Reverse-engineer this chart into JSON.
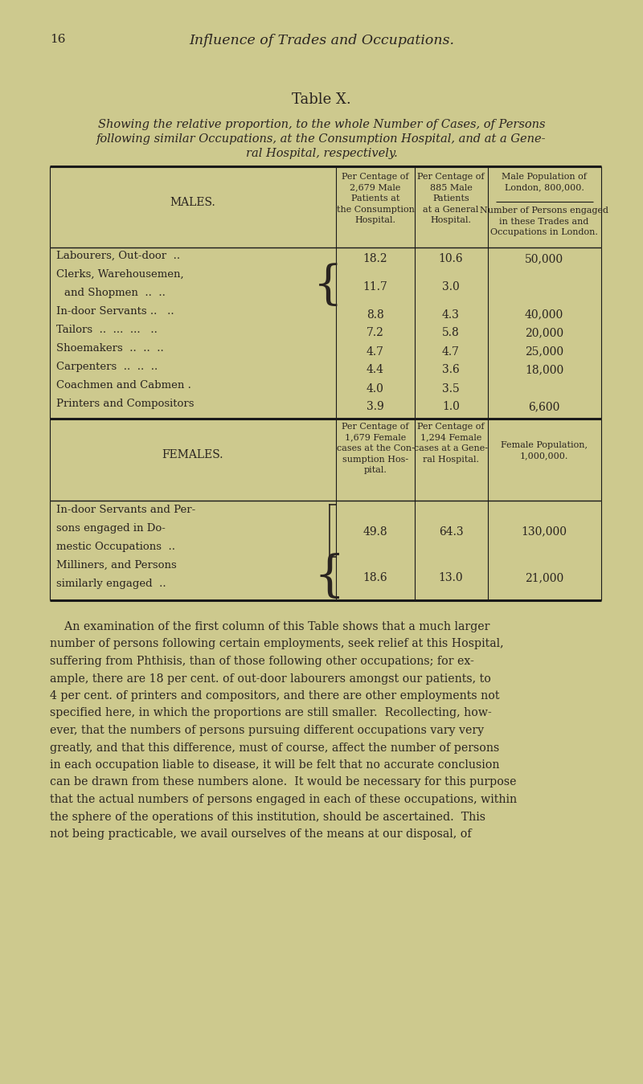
{
  "bg_color": "#cdc98e",
  "text_color": "#2a2420",
  "page_num": "16",
  "header_italic": "Influence of Trades and Occupations.",
  "table_title": "Table X.",
  "subtitle_line1": "Showing the relative proportion, to the whole Number of Cases, of Persons",
  "subtitle_line2": "following similar Occupations, at the Consumption Hospital, and at a Gene-",
  "subtitle_line3": "ral Hospital, respectively.",
  "males_header": "MALES.",
  "males_col1_header": "Per Centage of\n2,679 Male\nPatients at\nthe Consumption\nHospital.",
  "males_col2_header": "Per Centage of\n885 Male\nPatients\nat a General\nHospital.",
  "males_col3a_header": "Male Population of\nLondon, 800,000.",
  "males_col3b_header": "Number of Persons engaged\nin these Trades and\nOccupations in London.",
  "male_rows": [
    {
      "label": "Labourers, Out-door  ..",
      "label2": "",
      "bracket": false,
      "col1": "18.2",
      "col2": "10.6",
      "col3": "50,000"
    },
    {
      "label": "Clerks, Warehousemen,",
      "label2": "and Shopmen  ..  ..",
      "bracket": true,
      "col1": "11.7",
      "col2": "3.0",
      "col3": ""
    },
    {
      "label": "In-door Servants ..   ..",
      "label2": "",
      "bracket": false,
      "col1": "8.8",
      "col2": "4.3",
      "col3": "40,000"
    },
    {
      "label": "Tailors  ..  ...  ...   ..",
      "label2": "",
      "bracket": false,
      "col1": "7.2",
      "col2": "5.8",
      "col3": "20,000"
    },
    {
      "label": "Shoemakers  ..  ..  ..",
      "label2": "",
      "bracket": false,
      "col1": "4.7",
      "col2": "4.7",
      "col3": "25,000"
    },
    {
      "label": "Carpenters  ..  ..  ..",
      "label2": "",
      "bracket": false,
      "col1": "4.4",
      "col2": "3.6",
      "col3": "18,000"
    },
    {
      "label": "Coachmen and Cabmen .",
      "label2": "",
      "bracket": false,
      "col1": "4.0",
      "col2": "3.5",
      "col3": ""
    },
    {
      "label": "Printers and Compositors",
      "label2": "",
      "bracket": false,
      "col1": "3.9",
      "col2": "1.0",
      "col3": "6,600"
    }
  ],
  "females_header": "FEMALES.",
  "females_col1_header": "Per Centage of\n1,679 Female\ncases at the Con-\nsumption Hos-\npital.",
  "females_col2_header": "Per Centage of\n1,294 Female\ncases at a Gene-\nral Hospital.",
  "females_col3_header": "Female Population,\n1,000,000.",
  "female_rows": [
    {
      "label": "In-door Servants and Per-",
      "label2": "sons engaged in Do-",
      "label3": "mestic Occupations  ..",
      "bracket": "square",
      "col1": "49.8",
      "col2": "64.3",
      "col3": "130,000"
    },
    {
      "label": "Milliners, and Persons",
      "label2": "similarly engaged  ..",
      "label3": "",
      "bracket": "curly",
      "col1": "18.6",
      "col2": "13.0",
      "col3": "21,000"
    }
  ],
  "para_lines": [
    "    An examination of the first column of this Table shows that a much larger",
    "number of persons following certain employments, seek relief at this Hospital,",
    "suffering from Phthisis, than of those following other occupations; for ex-",
    "ample, there are 18 per cent. of out-door labourers amongst our patients, to",
    "4 per cent. of printers and compositors, and there are other employments not",
    "specified here, in which the proportions are still smaller.  Recollecting, how-",
    "ever, that the numbers of persons pursuing different occupations vary very",
    "greatly, and that this difference, must of course, affect the number of persons",
    "in each occupation liable to disease, it will be felt that no accurate conclusion",
    "can be drawn from these numbers alone.  It would be necessary for this purpose",
    "that the actual numbers of persons engaged in each of these occupations, within",
    "the sphere of the operations of this institution, should be ascertained.  This",
    "not being practicable, we avail ourselves of the means at our disposal, of"
  ]
}
